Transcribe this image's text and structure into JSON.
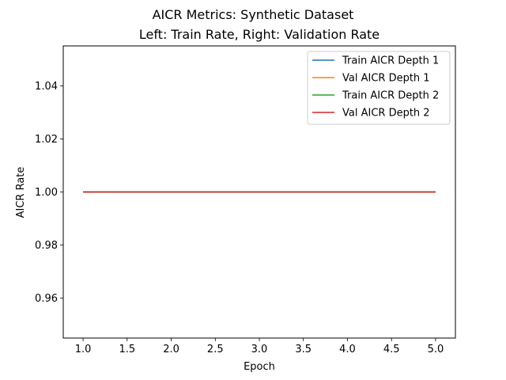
{
  "chart_data": {
    "type": "line",
    "suptitle": "AICR Metrics: Synthetic Dataset",
    "title": "Left: Train Rate, Right: Validation Rate",
    "xlabel": "Epoch",
    "ylabel": "AICR Rate",
    "xlim": [
      0.775,
      5.225
    ],
    "ylim": [
      0.945,
      1.055
    ],
    "xticks": [
      1.0,
      1.5,
      2.0,
      2.5,
      3.0,
      3.5,
      4.0,
      4.5,
      5.0
    ],
    "xtick_labels": [
      "1.0",
      "1.5",
      "2.0",
      "2.5",
      "3.0",
      "3.5",
      "4.0",
      "4.5",
      "5.0"
    ],
    "yticks": [
      0.96,
      0.98,
      1.0,
      1.02,
      1.04
    ],
    "ytick_labels": [
      "0.96",
      "0.98",
      "1.00",
      "1.02",
      "1.04"
    ],
    "grid": false,
    "legend_position": "top-right",
    "x": [
      1,
      2,
      3,
      4,
      5
    ],
    "series": [
      {
        "name": "Train AICR Depth 1",
        "color": "#1f77b4",
        "values": [
          1.0,
          1.0,
          1.0,
          1.0,
          1.0
        ]
      },
      {
        "name": "Val AICR Depth 1",
        "color": "#ff7f0e",
        "values": [
          1.0,
          1.0,
          1.0,
          1.0,
          1.0
        ]
      },
      {
        "name": "Train AICR Depth 2",
        "color": "#2ca02c",
        "values": [
          1.0,
          1.0,
          1.0,
          1.0,
          1.0
        ]
      },
      {
        "name": "Val AICR Depth 2",
        "color": "#d62728",
        "values": [
          1.0,
          1.0,
          1.0,
          1.0,
          1.0
        ]
      }
    ]
  }
}
